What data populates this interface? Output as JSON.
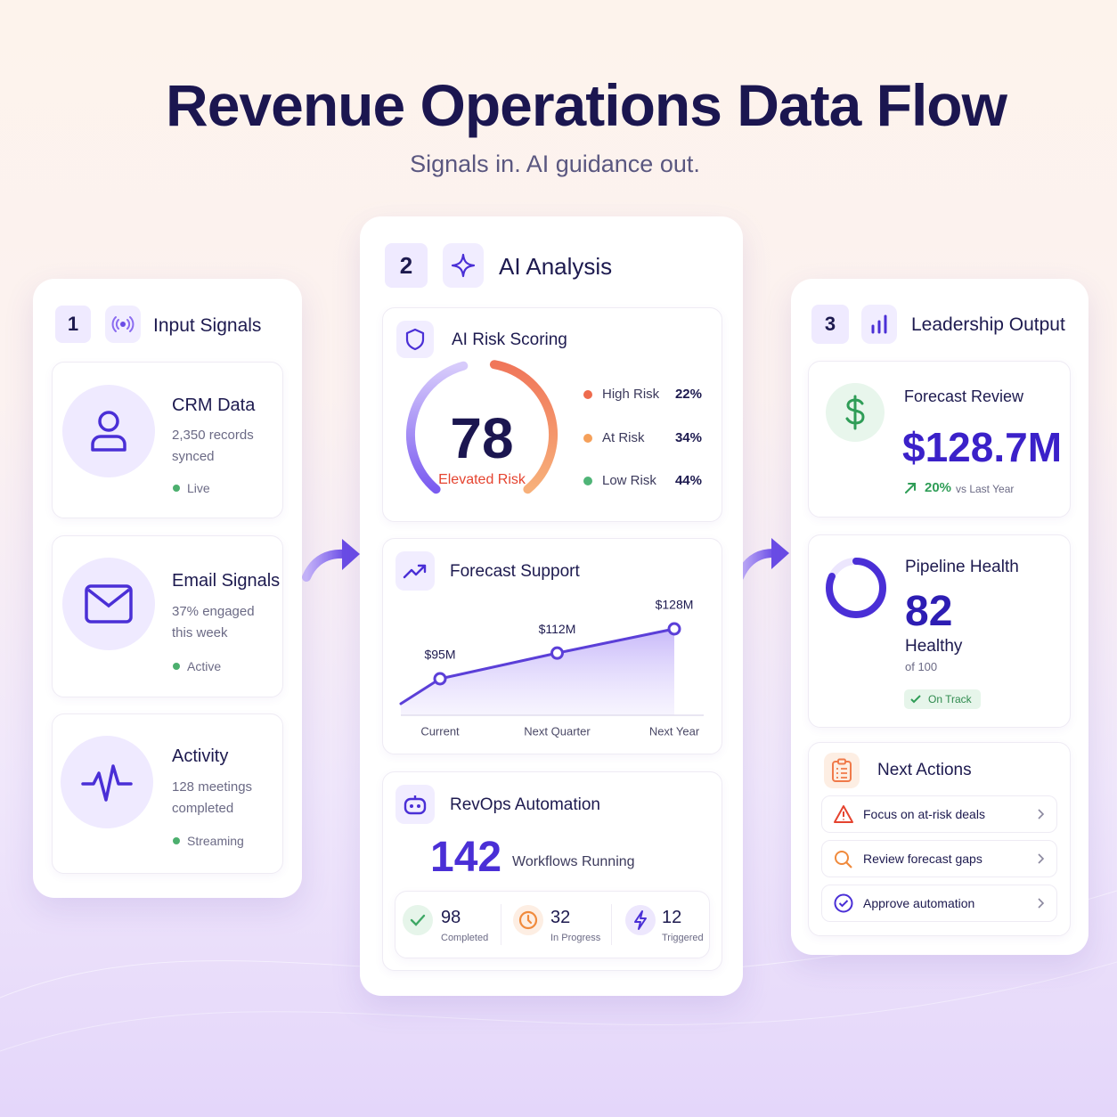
{
  "header": {
    "title": "Revenue Operations Data Flow",
    "subtitle": "Signals in. AI guidance out."
  },
  "input_signals": {
    "step": "1",
    "title": "Input Signals",
    "items": [
      {
        "title": "CRM Data",
        "detail": "2,350 records synced",
        "status": "Live"
      },
      {
        "title": "Email Signals",
        "detail": "37% engaged this week",
        "status": "Active"
      },
      {
        "title": "Activity",
        "detail": "128 meetings completed",
        "status": "Streaming"
      }
    ]
  },
  "ai_analysis": {
    "step": "2",
    "title": "AI Analysis",
    "risk_scoring": {
      "title": "AI Risk Scoring",
      "score": 78,
      "score_label": "Elevated Risk",
      "breakdown": [
        {
          "label": "High Risk",
          "value": "22%",
          "color": "#ee6b4d"
        },
        {
          "label": "At Risk",
          "value": "34%",
          "color": "#f5a05a"
        },
        {
          "label": "Low Risk",
          "value": "44%",
          "color": "#4fb477"
        }
      ]
    },
    "forecast_support": {
      "title": "Forecast Support",
      "type": "line",
      "categories": [
        "Current",
        "Next Quarter",
        "Next Year"
      ],
      "values": [
        95,
        112,
        128
      ],
      "value_labels": [
        "$95M",
        "$112M",
        "$128M"
      ],
      "color": "#5b3fd8"
    },
    "automation": {
      "title": "RevOps Automation",
      "count": 142,
      "count_label": "Workflows Running",
      "stats": [
        {
          "value": 98,
          "label": "Completed"
        },
        {
          "value": 32,
          "label": "In Progress"
        },
        {
          "value": 12,
          "label": "Triggered"
        }
      ]
    }
  },
  "leadership_output": {
    "step": "3",
    "title": "Leadership Output",
    "forecast_review": {
      "title": "Forecast Review",
      "value": "$128.7M",
      "change": "20%",
      "change_label": "vs Last Year"
    },
    "pipeline_health": {
      "title": "Pipeline Health",
      "value": 82,
      "label": "Healthy",
      "scale": {
        "value": 100,
        "label": "of 100"
      },
      "badge": "On Track"
    },
    "next_actions": {
      "title": "Next Actions",
      "items": [
        "Focus on at-risk deals",
        "Review forecast gaps",
        "Approve automation"
      ]
    }
  }
}
